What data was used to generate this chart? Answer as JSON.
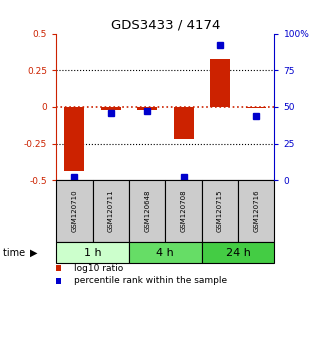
{
  "title": "GDS3433 / 4174",
  "samples": [
    "GSM120710",
    "GSM120711",
    "GSM120648",
    "GSM120708",
    "GSM120715",
    "GSM120716"
  ],
  "log10_ratio": [
    -0.44,
    -0.02,
    -0.02,
    -0.22,
    0.33,
    -0.01
  ],
  "percentile_rank": [
    2,
    46,
    47,
    2,
    92,
    44
  ],
  "time_groups": [
    {
      "label": "1 h",
      "start": 0,
      "end": 2,
      "color": "#ccffcc"
    },
    {
      "label": "4 h",
      "start": 2,
      "end": 4,
      "color": "#66dd66"
    },
    {
      "label": "24 h",
      "start": 4,
      "end": 6,
      "color": "#44cc44"
    }
  ],
  "ylim_left": [
    -0.5,
    0.5
  ],
  "ylim_right": [
    0,
    100
  ],
  "yticks_left": [
    -0.5,
    -0.25,
    0,
    0.25,
    0.5
  ],
  "ytick_labels_left": [
    "-0.5",
    "-0.25",
    "0",
    "0.25",
    "0.5"
  ],
  "yticks_right": [
    0,
    25,
    50,
    75,
    100
  ],
  "ytick_labels_right": [
    "0",
    "25",
    "50",
    "75",
    "100%"
  ],
  "bar_color": "#cc2200",
  "dot_color": "#0000cc",
  "bg_color": "#ffffff",
  "sample_box_color": "#cccccc",
  "bar_width": 0.55,
  "dot_size": 4
}
